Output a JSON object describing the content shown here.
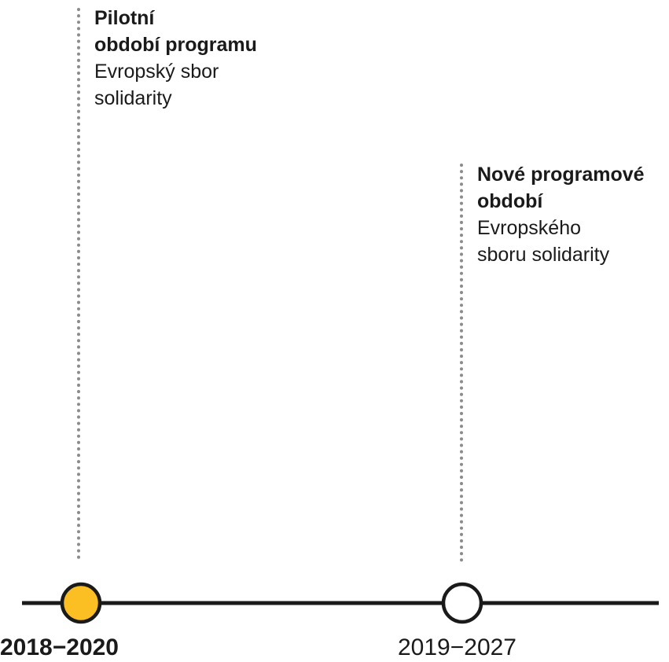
{
  "colors": {
    "line": "#1a1a1a",
    "dotted": "#8c8c8c",
    "active_marker": "#fbbf24",
    "inactive_marker": "#ffffff"
  },
  "milestones": [
    {
      "heading": "Pilotní\nobdobí programu",
      "description": "Evropský sbor\nsolidarity",
      "date": "2018−2020",
      "active": true
    },
    {
      "heading": "Nové programové\nobdobí",
      "description": "Evropského\nsboru solidarity",
      "date": "2019−2027",
      "active": false
    }
  ]
}
